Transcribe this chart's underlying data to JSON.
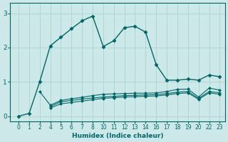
{
  "xlabel": "Humidex (Indice chaleur)",
  "bg_color": "#cce8e8",
  "line_color": "#006666",
  "grid_color": "#aad4d4",
  "xtick_labels": [
    "0",
    "1",
    "2",
    "4",
    "5",
    "6",
    "7",
    "8",
    "10",
    "11",
    "12",
    "13",
    "14",
    "16",
    "17",
    "18",
    "19",
    "20",
    "22",
    "23"
  ],
  "yticks": [
    0,
    1,
    2,
    3
  ],
  "ylim": [
    -0.15,
    3.3
  ],
  "series": [
    {
      "y": [
        0.0,
        0.08,
        1.0,
        2.05,
        2.3,
        2.55,
        2.78,
        2.92,
        2.03,
        2.2,
        2.58,
        2.62,
        2.45,
        1.5,
        1.05,
        1.05,
        1.08,
        1.05,
        1.2,
        1.15
      ],
      "marker": "D",
      "markersize": 2.5,
      "linewidth": 1.0
    },
    {
      "y": [
        null,
        null,
        0.72,
        0.32,
        0.46,
        0.51,
        0.55,
        0.6,
        0.64,
        0.65,
        0.66,
        0.67,
        0.67,
        0.68,
        0.72,
        0.78,
        0.79,
        0.56,
        0.82,
        0.76
      ],
      "marker": "D",
      "markersize": 2.0,
      "linewidth": 0.8
    },
    {
      "y": [
        null,
        null,
        null,
        0.28,
        0.42,
        0.46,
        0.5,
        0.53,
        0.56,
        0.58,
        0.6,
        0.61,
        0.62,
        0.63,
        0.66,
        0.7,
        0.72,
        0.52,
        0.72,
        0.68
      ],
      "marker": "D",
      "markersize": 2.0,
      "linewidth": 0.8
    },
    {
      "y": [
        null,
        null,
        null,
        0.24,
        0.36,
        0.4,
        0.44,
        0.48,
        0.52,
        0.54,
        0.56,
        0.57,
        0.58,
        0.59,
        0.62,
        0.66,
        0.68,
        0.49,
        0.68,
        0.64
      ],
      "marker": "D",
      "markersize": 2.0,
      "linewidth": 0.8
    }
  ]
}
